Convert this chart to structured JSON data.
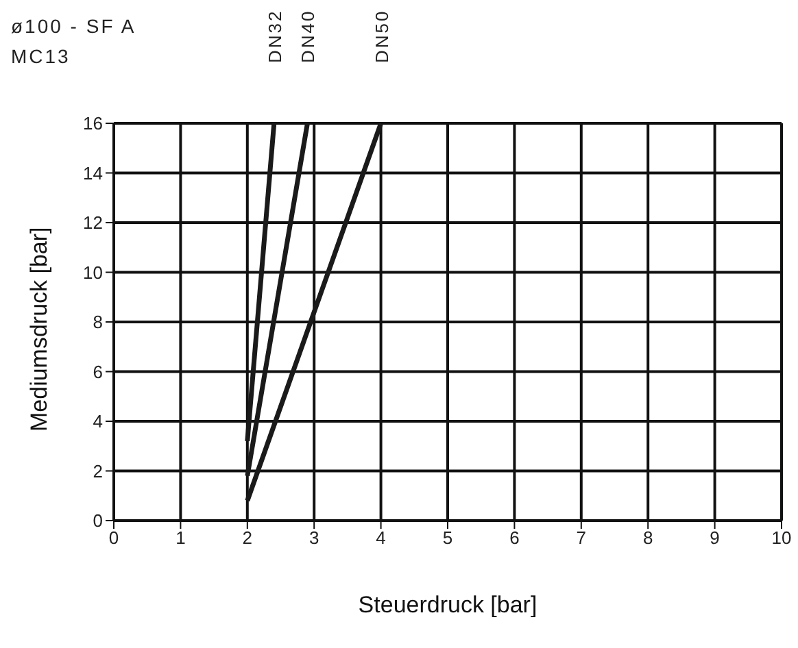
{
  "chart_data": {
    "type": "line",
    "title": "ø100 - SF A",
    "subtitle": "MC13",
    "xlabel": "Steuerdruck [bar]",
    "ylabel": "Mediumsdruck [bar]",
    "series": [
      {
        "name": "DN32",
        "color": "#1a1a1a",
        "x": [
          2,
          2.4
        ],
        "values": [
          3.2,
          16
        ]
      },
      {
        "name": "DN40",
        "color": "#1a1a1a",
        "x": [
          2,
          2.9
        ],
        "values": [
          1.8,
          16
        ]
      },
      {
        "name": "DN50",
        "color": "#1a1a1a",
        "x": [
          2,
          4
        ],
        "values": [
          0.8,
          16
        ]
      }
    ],
    "xlim": [
      0,
      10
    ],
    "xticks": [
      0,
      1,
      2,
      3,
      4,
      5,
      6,
      7,
      8,
      9,
      10
    ],
    "ylim": [
      0,
      16
    ],
    "yticks": [
      0,
      2,
      4,
      6,
      8,
      10,
      12,
      14,
      16
    ],
    "grid": true,
    "legend": false,
    "marker": "none",
    "line_style": "solid"
  }
}
